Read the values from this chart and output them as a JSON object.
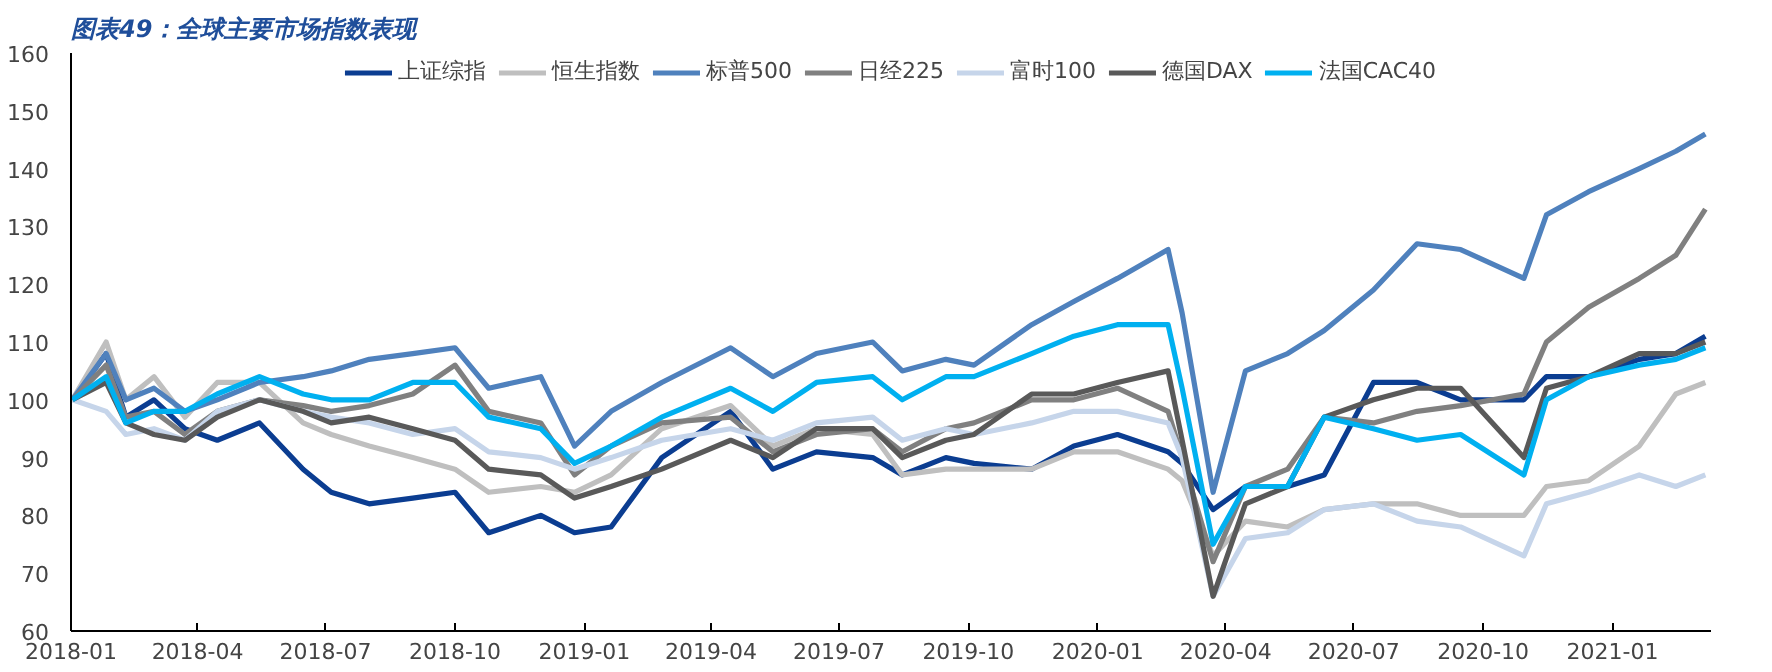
{
  "chart_data": {
    "type": "line",
    "title": "图表49：全球主要市场指数表现",
    "x": [
      "2018-01-02",
      "2018-01-26",
      "2018-02-09",
      "2018-03-01",
      "2018-03-23",
      "2018-04-15",
      "2018-05-15",
      "2018-06-15",
      "2018-07-05",
      "2018-08-01",
      "2018-09-01",
      "2018-10-01",
      "2018-10-25",
      "2018-12-01",
      "2018-12-25",
      "2019-01-20",
      "2019-02-25",
      "2019-04-15",
      "2019-05-15",
      "2019-06-15",
      "2019-07-25",
      "2019-08-15",
      "2019-09-15",
      "2019-10-05",
      "2019-11-15",
      "2019-12-15",
      "2020-01-15",
      "2020-02-20",
      "2020-03-01",
      "2020-03-23",
      "2020-04-15",
      "2020-05-15",
      "2020-06-10",
      "2020-07-15",
      "2020-08-15",
      "2020-09-15",
      "2020-10-30",
      "2020-11-15",
      "2020-12-15",
      "2021-01-20",
      "2021-02-15",
      "2021-03-08"
    ],
    "series": [
      {
        "name": "上证综指",
        "color": "#0b3d91",
        "values": [
          100,
          108,
          97,
          100,
          95,
          93,
          96,
          88,
          84,
          82,
          83,
          84,
          77,
          80,
          77,
          78,
          90,
          98,
          88,
          91,
          90,
          87,
          90,
          89,
          88,
          92,
          94,
          91,
          89,
          81,
          85,
          85,
          87,
          103,
          103,
          100,
          100,
          104,
          104,
          107,
          108,
          111
        ]
      },
      {
        "name": "恒生指数",
        "color": "#bfbfbf",
        "values": [
          100,
          110,
          100,
          104,
          97,
          103,
          103,
          96,
          94,
          92,
          90,
          88,
          84,
          85,
          84,
          87,
          95,
          99,
          92,
          95,
          94,
          87,
          88,
          88,
          88,
          91,
          91,
          88,
          86,
          73,
          79,
          78,
          81,
          82,
          82,
          80,
          80,
          85,
          86,
          92,
          101,
          103
        ]
      },
      {
        "name": "标普500",
        "color": "#4f81bd",
        "values": [
          100,
          108,
          100,
          102,
          98,
          100,
          103,
          104,
          105,
          107,
          108,
          109,
          102,
          104,
          92,
          98,
          103,
          109,
          104,
          108,
          110,
          105,
          107,
          106,
          113,
          117,
          121,
          126,
          115,
          84,
          105,
          108,
          112,
          119,
          127,
          126,
          121,
          132,
          136,
          140,
          143,
          146
        ]
      },
      {
        "name": "日经225",
        "color": "#808080",
        "values": [
          100,
          106,
          97,
          98,
          94,
          98,
          100,
          99,
          98,
          99,
          101,
          106,
          98,
          96,
          87,
          92,
          96,
          97,
          91,
          94,
          95,
          91,
          95,
          96,
          100,
          100,
          102,
          98,
          90,
          72,
          85,
          88,
          97,
          96,
          98,
          99,
          101,
          110,
          116,
          121,
          125,
          133
        ]
      },
      {
        "name": "富时100",
        "color": "#c6d5ea",
        "values": [
          100,
          98,
          94,
          95,
          93,
          98,
          100,
          98,
          97,
          96,
          94,
          95,
          91,
          90,
          88,
          90,
          93,
          95,
          93,
          96,
          97,
          93,
          95,
          94,
          96,
          98,
          98,
          96,
          90,
          66,
          76,
          77,
          81,
          82,
          79,
          78,
          73,
          82,
          84,
          87,
          85,
          87
        ]
      },
      {
        "name": "德国DAX",
        "color": "#595959",
        "values": [
          100,
          103,
          96,
          94,
          93,
          97,
          100,
          98,
          96,
          97,
          95,
          93,
          88,
          87,
          83,
          85,
          88,
          93,
          90,
          95,
          95,
          90,
          93,
          94,
          101,
          101,
          103,
          105,
          93,
          66,
          82,
          85,
          97,
          100,
          102,
          102,
          90,
          102,
          104,
          108,
          108,
          110
        ]
      },
      {
        "name": "法国CAC40",
        "color": "#00b0f0",
        "values": [
          100,
          104,
          96,
          98,
          98,
          101,
          104,
          101,
          100,
          100,
          103,
          103,
          97,
          95,
          89,
          92,
          97,
          102,
          98,
          103,
          104,
          100,
          104,
          104,
          108,
          111,
          113,
          113,
          102,
          75,
          85,
          85,
          97,
          95,
          93,
          94,
          87,
          100,
          104,
          106,
          107,
          109
        ]
      }
    ],
    "xlim": [
      "2018-01-01",
      "2021-03-12"
    ],
    "xticks": [
      "2018-01",
      "2018-04",
      "2018-07",
      "2018-10",
      "2019-01",
      "2019-04",
      "2019-07",
      "2019-10",
      "2020-01",
      "2020-04",
      "2020-07",
      "2020-10",
      "2021-01"
    ],
    "ylim": [
      60,
      160
    ],
    "yticks": [
      60,
      70,
      80,
      90,
      100,
      110,
      120,
      130,
      140,
      150,
      160
    ],
    "legend": "top",
    "line_style": "solid"
  }
}
